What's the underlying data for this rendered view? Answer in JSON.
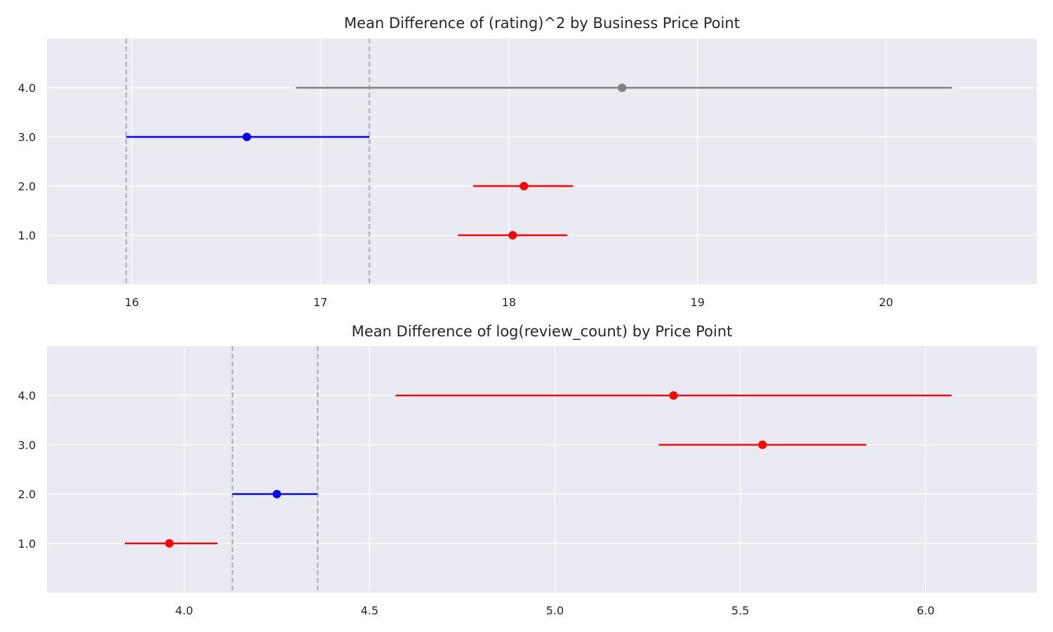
{
  "chart_data": [
    {
      "type": "errorbar",
      "title": "Mean Difference of (rating)^2 by Business Price Point",
      "xlabel": "",
      "ylabel": "",
      "xlim": [
        15.55,
        20.8
      ],
      "ylim": [
        0,
        5
      ],
      "xticks": [
        16,
        17,
        18,
        19,
        20
      ],
      "xtick_labels": [
        "16",
        "17",
        "18",
        "19",
        "20"
      ],
      "yticks": [
        1,
        2,
        3,
        4
      ],
      "ytick_labels": [
        "1.0",
        "2.0",
        "3.0",
        "4.0"
      ],
      "grid": true,
      "reference_lines": [
        15.97,
        17.26
      ],
      "points": [
        {
          "y": 4,
          "mean": 18.6,
          "low": 16.87,
          "high": 20.35,
          "color": "#808080"
        },
        {
          "y": 3,
          "mean": 16.61,
          "low": 15.97,
          "high": 17.26,
          "color": "#0000ff"
        },
        {
          "y": 2,
          "mean": 18.08,
          "low": 17.81,
          "high": 18.34,
          "color": "#ff0000"
        },
        {
          "y": 1,
          "mean": 18.02,
          "low": 17.73,
          "high": 18.31,
          "color": "#ff0000"
        }
      ]
    },
    {
      "type": "errorbar",
      "title": "Mean Difference of log(review_count) by Price Point",
      "xlabel": "",
      "ylabel": "",
      "xlim": [
        3.63,
        6.3
      ],
      "ylim": [
        0,
        5
      ],
      "xticks": [
        4.0,
        4.5,
        5.0,
        5.5,
        6.0
      ],
      "xtick_labels": [
        "4.0",
        "4.5",
        "5.0",
        "5.5",
        "6.0"
      ],
      "yticks": [
        1,
        2,
        3,
        4
      ],
      "ytick_labels": [
        "1.0",
        "2.0",
        "3.0",
        "4.0"
      ],
      "grid": true,
      "reference_lines": [
        4.13,
        4.36
      ],
      "points": [
        {
          "y": 4,
          "mean": 5.32,
          "low": 4.57,
          "high": 6.07,
          "color": "#ff0000"
        },
        {
          "y": 3,
          "mean": 5.56,
          "low": 5.28,
          "high": 5.84,
          "color": "#ff0000"
        },
        {
          "y": 2,
          "mean": 4.25,
          "low": 4.13,
          "high": 4.36,
          "color": "#0000ff"
        },
        {
          "y": 1,
          "mean": 3.96,
          "low": 3.84,
          "high": 4.09,
          "color": "#ff0000"
        }
      ]
    }
  ],
  "colors": {
    "axes_bg": "#eaeaf2",
    "grid": "#ffffff",
    "ref_line": "#b0b0b0",
    "text": "#262626"
  }
}
